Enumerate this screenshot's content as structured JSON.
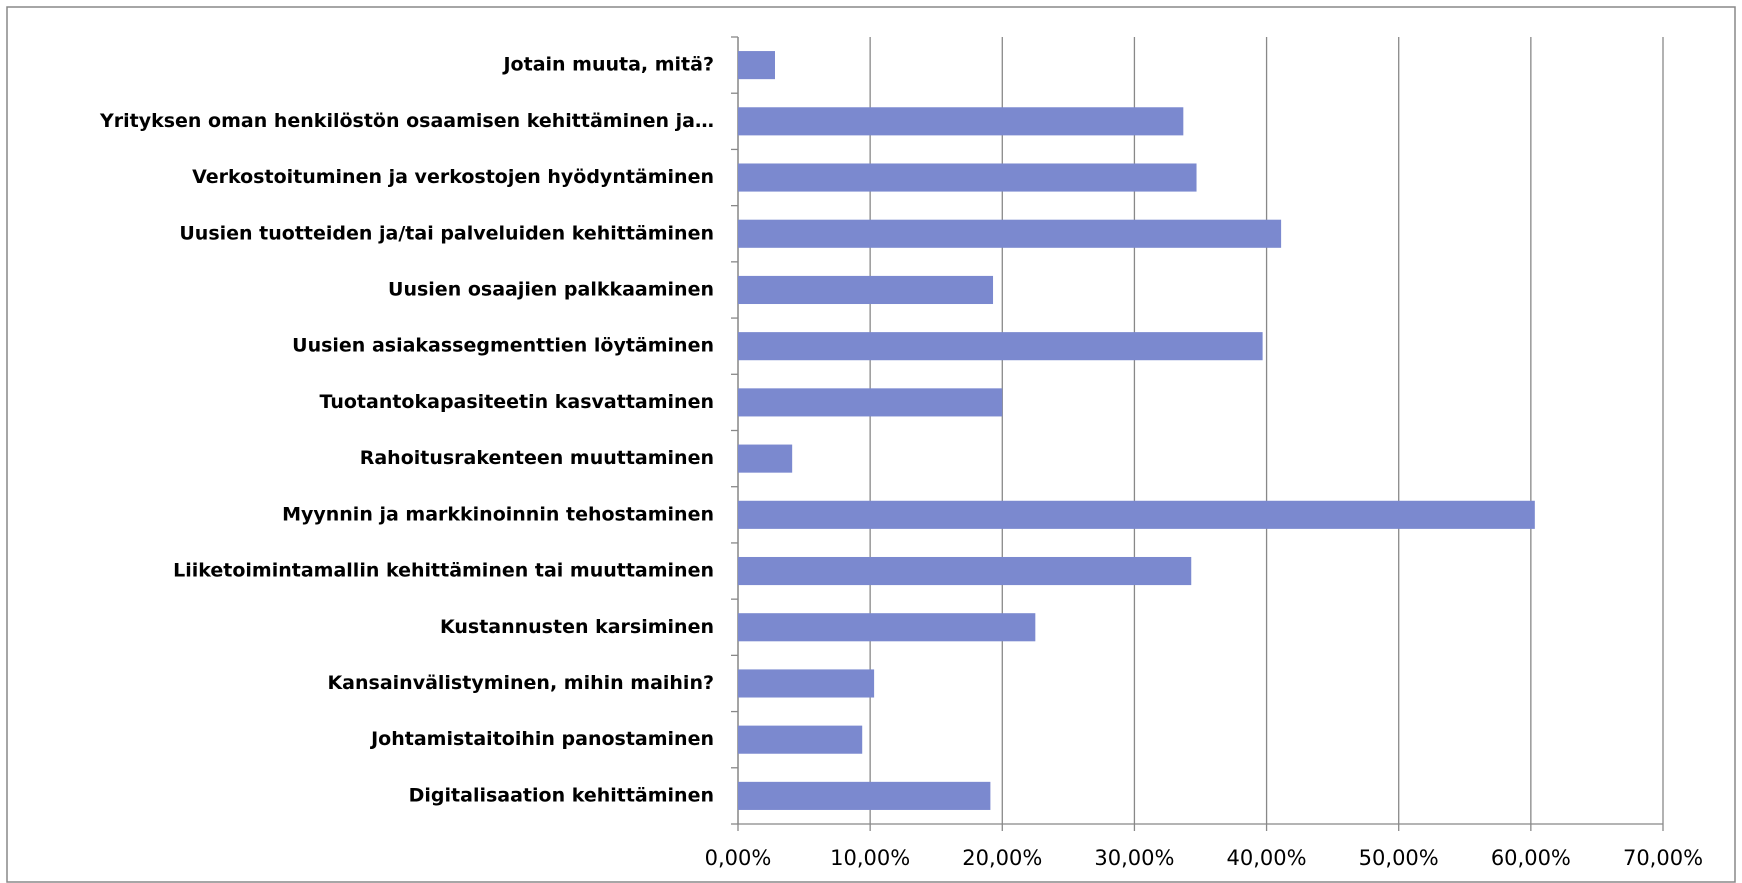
{
  "chart_data": {
    "type": "barh",
    "categories": [
      "Digitalisaation kehittäminen",
      "Johtamistaitoihin panostaminen",
      "Kansainvälistyminen, mihin maihin?",
      "Kustannusten karsiminen",
      "Liiketoimintamallin kehittäminen tai muuttaminen",
      "Myynnin ja markkinoinnin tehostaminen",
      "Rahoitusrakenteen muuttaminen",
      "Tuotantokapasiteetin kasvattaminen",
      "Uusien asiakassegmenttien löytäminen",
      "Uusien osaajien palkkaaminen",
      "Uusien tuotteiden ja/tai palveluiden kehittäminen",
      "Verkostoituminen ja verkostojen hyödyntäminen",
      "Yrityksen oman henkilöstön osaamisen kehittäminen ja…",
      "Jotain muuta, mitä?"
    ],
    "values": [
      19.1,
      9.4,
      10.3,
      22.5,
      34.3,
      60.3,
      4.1,
      20.0,
      39.7,
      19.3,
      41.1,
      34.7,
      33.7,
      2.8
    ],
    "color": "#7b89cf",
    "xlim": [
      0,
      70
    ],
    "xticks": [
      {
        "value": 0,
        "label": "0,00%"
      },
      {
        "value": 10,
        "label": "10,00%"
      },
      {
        "value": 20,
        "label": "20,00%"
      },
      {
        "value": 30,
        "label": "30,00%"
      },
      {
        "value": 40,
        "label": "40,00%"
      },
      {
        "value": 50,
        "label": "50,00%"
      },
      {
        "value": 60,
        "label": "60,00%"
      },
      {
        "value": 70,
        "label": "70,00%"
      }
    ],
    "grid": true
  }
}
